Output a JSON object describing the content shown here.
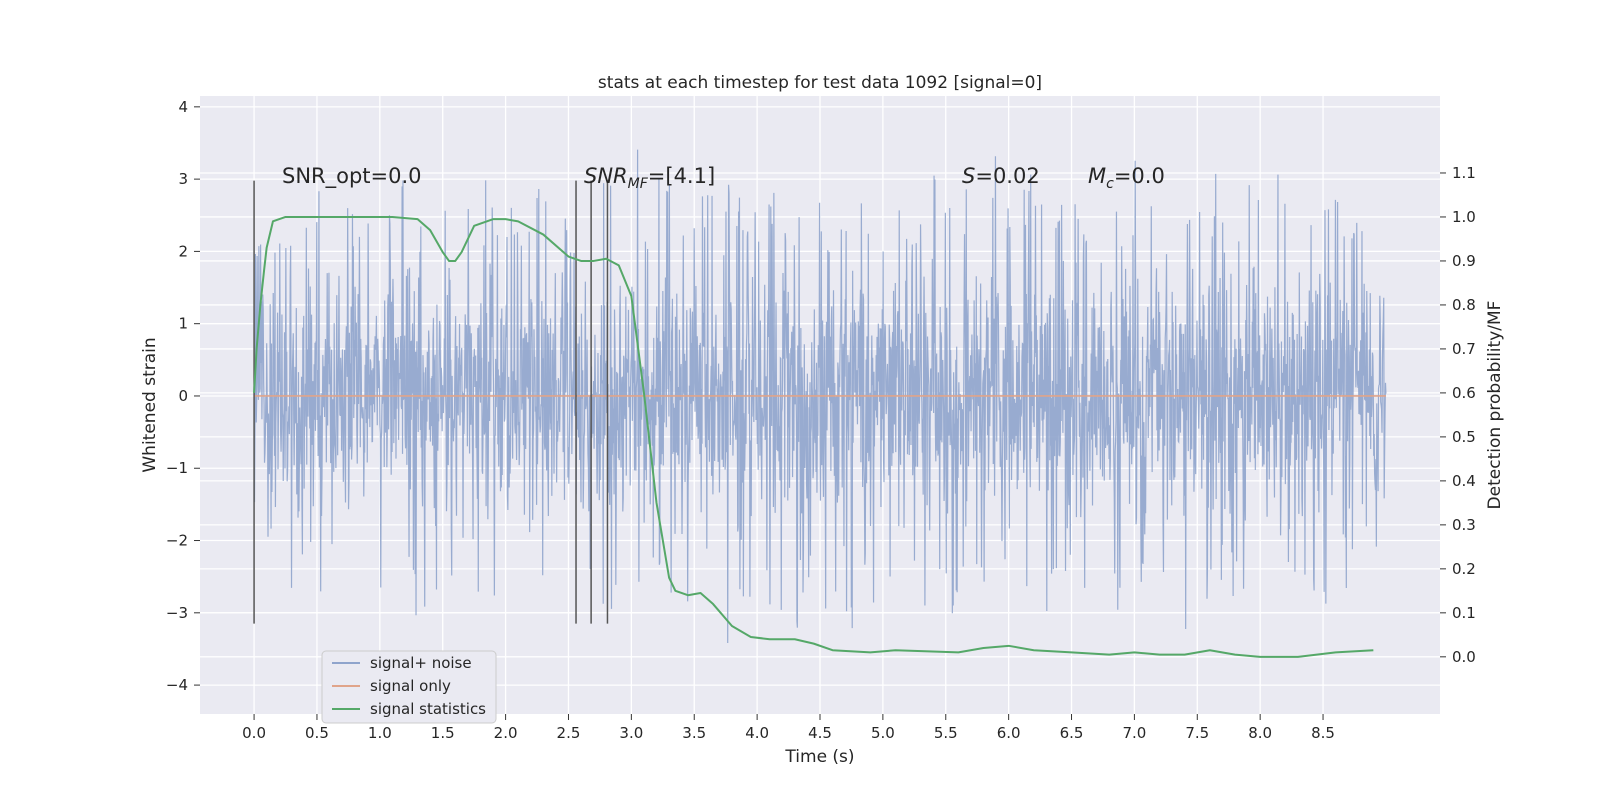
{
  "chart_data": {
    "type": "line",
    "title": "stats at each timestep for test data 1092 [signal=0]",
    "xlabel": "Time (s)",
    "ylabel": "Whitened strain",
    "y2label": "Detection probability/MF",
    "xlim": [
      -0.43,
      9.43
    ],
    "ylim": [
      -4.4,
      4.15
    ],
    "y2lim": [
      -0.13,
      1.275
    ],
    "xticks": [
      "0.0",
      "0.5",
      "1.0",
      "1.5",
      "2.0",
      "2.5",
      "3.0",
      "3.5",
      "4.0",
      "4.5",
      "5.0",
      "5.5",
      "6.0",
      "6.5",
      "7.0",
      "7.5",
      "8.0",
      "8.5"
    ],
    "yticks": [
      "4",
      "3",
      "2",
      "1",
      "0",
      "−1",
      "−2",
      "−3",
      "−4"
    ],
    "y2ticks": [
      "1.1",
      "1.0",
      "0.9",
      "0.8",
      "0.7",
      "0.6",
      "0.5",
      "0.4",
      "0.3",
      "0.2",
      "0.1",
      "0.0"
    ],
    "grid": true,
    "legend_position": "lower-left",
    "annotations": {
      "snr_opt": "SNR_opt=0.0",
      "snr_mf_prefix": "SNR",
      "snr_mf_sub": "MF",
      "snr_mf_value": "=[4.1]",
      "s_label": "S",
      "s_value": "=0.02",
      "mc_label": "M",
      "mc_sub": "c",
      "mc_value": "=0.0"
    },
    "vertical_markers_x": [
      0.0,
      2.56,
      2.68,
      2.81
    ],
    "vertical_marker_range": [
      -3.15,
      2.98
    ],
    "series": [
      {
        "name": "signal+ noise",
        "color": "#8fa4cc",
        "axis": "left",
        "x_range": [
          0.0,
          9.0
        ],
        "envelope_top": [
          2.3,
          2.5,
          2.7,
          2.9,
          2.6,
          2.8,
          2.5,
          3.0,
          2.6,
          2.9,
          2.7,
          3.3,
          2.8,
          2.6,
          2.9,
          2.5,
          3.3,
          3.1,
          3.7,
          2.8,
          3.1,
          2.7,
          3.0,
          3.3,
          2.8,
          3.0,
          2.7,
          3.2,
          2.9,
          2.6,
          2.8,
          3.1,
          2.7,
          3.8,
          2.6,
          2.9,
          3.6,
          2.8,
          3.1,
          2.7,
          3.0,
          2.8,
          3.1,
          3.5,
          2.7,
          3.2,
          2.9,
          3.1,
          2.8,
          3.0,
          3.4,
          2.9,
          3.1,
          2.8,
          2.7,
          2.6
        ],
        "envelope_bottom": [
          -2.2,
          -2.7,
          -2.5,
          -3.0,
          -2.6,
          -2.8,
          -3.3,
          -2.7,
          -3.2,
          -2.9,
          -3.4,
          -2.8,
          -2.6,
          -2.9,
          -3.1,
          -2.7,
          -3.0,
          -3.2,
          -2.8,
          -2.9,
          -3.0,
          -3.2,
          -2.7,
          -3.6,
          -2.9,
          -3.0,
          -3.5,
          -2.8,
          -3.3,
          -3.9,
          -2.9,
          -3.1,
          -2.7,
          -3.0,
          -3.2,
          -2.8,
          -2.9,
          -3.0,
          -3.2,
          -3.1,
          -2.8,
          -3.4,
          -3.2,
          -2.9,
          -2.8,
          -3.0,
          -3.3,
          -2.9,
          -2.8,
          -3.2,
          -3.0,
          -2.8,
          -3.1,
          -3.0,
          -2.8,
          -2.5
        ]
      },
      {
        "name": "signal only",
        "color": "#e0a48a",
        "axis": "left",
        "x": [
          0.0,
          9.0
        ],
        "y": [
          0.0,
          0.0
        ]
      },
      {
        "name": "signal statistics",
        "color": "#55a868",
        "axis": "right",
        "x": [
          0.0,
          0.02,
          0.05,
          0.08,
          0.1,
          0.15,
          0.25,
          0.4,
          0.6,
          0.9,
          1.1,
          1.3,
          1.4,
          1.5,
          1.55,
          1.6,
          1.65,
          1.75,
          1.9,
          2.0,
          2.1,
          2.3,
          2.5,
          2.6,
          2.7,
          2.8,
          2.9,
          3.0,
          3.1,
          3.2,
          3.3,
          3.35,
          3.45,
          3.55,
          3.65,
          3.8,
          3.95,
          4.1,
          4.3,
          4.45,
          4.6,
          4.9,
          5.1,
          5.6,
          5.8,
          6.0,
          6.2,
          6.5,
          6.8,
          7.0,
          7.2,
          7.4,
          7.6,
          7.8,
          8.0,
          8.3,
          8.6,
          8.9
        ],
        "y": [
          0.6,
          0.7,
          0.8,
          0.88,
          0.93,
          0.99,
          1.0,
          1.0,
          1.0,
          1.0,
          1.0,
          0.995,
          0.97,
          0.92,
          0.9,
          0.9,
          0.92,
          0.98,
          0.995,
          0.995,
          0.99,
          0.96,
          0.91,
          0.9,
          0.9,
          0.905,
          0.89,
          0.82,
          0.6,
          0.35,
          0.18,
          0.15,
          0.14,
          0.145,
          0.12,
          0.07,
          0.045,
          0.04,
          0.04,
          0.03,
          0.015,
          0.01,
          0.015,
          0.01,
          0.02,
          0.025,
          0.015,
          0.01,
          0.005,
          0.01,
          0.005,
          0.005,
          0.015,
          0.005,
          0.0,
          0.0,
          0.01,
          0.015
        ]
      }
    ]
  }
}
